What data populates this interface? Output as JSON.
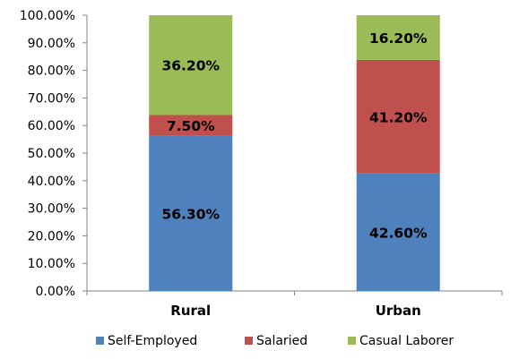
{
  "chart_data": {
    "type": "bar",
    "stacked": true,
    "categories": [
      "Rural",
      "Urban"
    ],
    "series": [
      {
        "name": "Self-Employed",
        "values": [
          56.3,
          42.6
        ],
        "labels": [
          "56.30%",
          "42.60%"
        ],
        "color": "#4F81BD"
      },
      {
        "name": "Salaried",
        "values": [
          7.5,
          41.2
        ],
        "labels": [
          "7.50%",
          "41.20%"
        ],
        "color": "#C0504D"
      },
      {
        "name": "Casual Laborer",
        "values": [
          36.2,
          16.2
        ],
        "labels": [
          "36.20%",
          "16.20%"
        ],
        "color": "#9BBB59"
      }
    ],
    "y_ticks": [
      "0.00%",
      "10.00%",
      "20.00%",
      "30.00%",
      "40.00%",
      "50.00%",
      "60.00%",
      "70.00%",
      "80.00%",
      "90.00%",
      "100.00%"
    ],
    "ylim": [
      0,
      100
    ],
    "grid": false,
    "legend_position": "bottom",
    "title": "",
    "xlabel": "",
    "ylabel": ""
  }
}
